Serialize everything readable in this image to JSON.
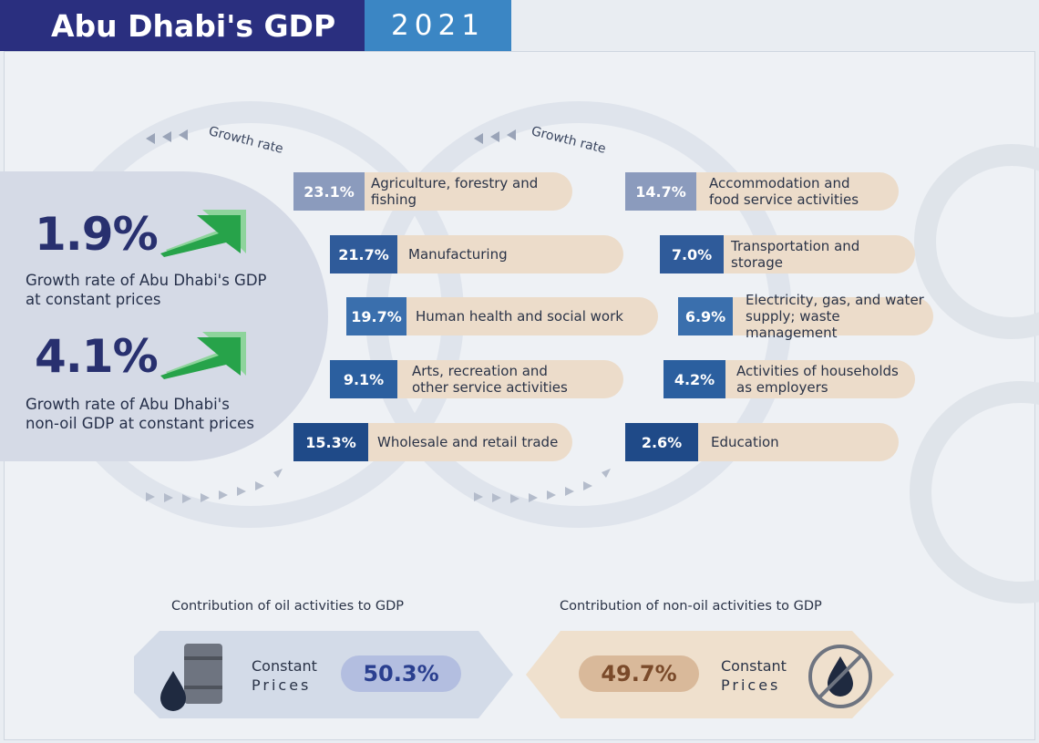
{
  "header": {
    "title": "Abu Dhabi's GDP",
    "year": "2021"
  },
  "headline": [
    {
      "value": "1.9%",
      "caption_line1": "Growth rate of Abu Dhabi's GDP",
      "caption_line2": "at constant prices"
    },
    {
      "value": "4.1%",
      "caption_line1": "Growth rate of Abu Dhabi's",
      "caption_line2": "non-oil GDP at constant prices"
    }
  ],
  "growth_rate_label": "Growth rate",
  "sectors_left": [
    {
      "pct": "23.1%",
      "name_line1": "Agriculture, forestry and fishing",
      "name_line2": ""
    },
    {
      "pct": "21.7%",
      "name_line1": "Manufacturing",
      "name_line2": ""
    },
    {
      "pct": "19.7%",
      "name_line1": "Human health and social work",
      "name_line2": ""
    },
    {
      "pct": "9.1%",
      "name_line1": "Arts, recreation and",
      "name_line2": "other service activities"
    },
    {
      "pct": "15.3%",
      "name_line1": "Wholesale and retail trade",
      "name_line2": ""
    }
  ],
  "sectors_right": [
    {
      "pct": "14.7%",
      "name_line1": "Accommodation and",
      "name_line2": "food service activities"
    },
    {
      "pct": "7.0%",
      "name_line1": "Transportation and storage",
      "name_line2": ""
    },
    {
      "pct": "6.9%",
      "name_line1": "Electricity, gas, and water",
      "name_line2": "supply; waste management"
    },
    {
      "pct": "4.2%",
      "name_line1": "Activities of households",
      "name_line2": "as employers"
    },
    {
      "pct": "2.6%",
      "name_line1": "Education",
      "name_line2": ""
    }
  ],
  "contribution": {
    "oil": {
      "label": "Contribution of oil activities to GDP",
      "cp_line1": "Constant",
      "cp_line2": "Prices",
      "value": "50.3%"
    },
    "non_oil": {
      "label": "Contribution of non-oil activities to GDP",
      "cp_line1": "Constant",
      "cp_line2": "Prices",
      "value": "49.7%"
    }
  },
  "icons": [
    "growth-arrow-icon",
    "oil-barrel-icon",
    "no-oil-icon",
    "gear-icon",
    "chevron-arrows-icon"
  ],
  "colors": {
    "navy": "#2a2f7f",
    "blue": "#3b86c4",
    "green": "#27a34a",
    "beige": "#ecdcca",
    "value_blue": "#2a3f8f",
    "value_brown": "#7a4a2a"
  }
}
